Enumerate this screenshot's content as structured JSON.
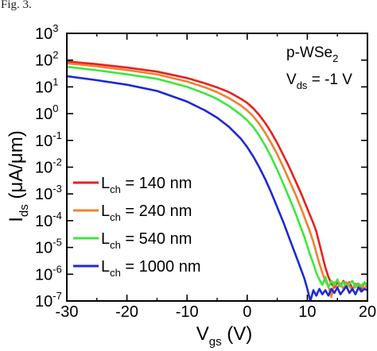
{
  "caption": "Fig. 3.",
  "chart_data": {
    "type": "line",
    "xlabel": "V",
    "xlabel_sub": "gs",
    "xlabel_unit": "(V)",
    "ylabel": "I",
    "ylabel_sub": "ds",
    "ylabel_unit": "(μA/μm)",
    "xlim": [
      -30,
      20
    ],
    "ylim_log10": [
      -7,
      3
    ],
    "y_scale": "log",
    "grid": false,
    "x_ticks": [
      -30,
      -20,
      -10,
      0,
      10,
      20
    ],
    "x_tick_labels": [
      "-30",
      "-20",
      "-10",
      "0",
      "10",
      "20"
    ],
    "y_ticks_log10": [
      3,
      2,
      1,
      0,
      -1,
      -2,
      -3,
      -4,
      -5,
      -6,
      -7
    ],
    "y_tick_labels": [
      {
        "base": "10",
        "exp": "3"
      },
      {
        "base": "10",
        "exp": "2"
      },
      {
        "base": "10",
        "exp": "1"
      },
      {
        "base": "10",
        "exp": "0"
      },
      {
        "base": "10",
        "exp": "-1"
      },
      {
        "base": "10",
        "exp": "-2"
      },
      {
        "base": "10",
        "exp": "-3"
      },
      {
        "base": "10",
        "exp": "-4"
      },
      {
        "base": "10",
        "exp": "-5"
      },
      {
        "base": "10",
        "exp": "-6"
      },
      {
        "base": "10",
        "exp": "-7"
      }
    ],
    "annotations": {
      "material": {
        "main": "p-WSe",
        "sub": "2"
      },
      "bias": {
        "main": "V",
        "sub": "ds",
        "rest": " = -1 V"
      }
    },
    "legend_position": "lower-left",
    "series": [
      {
        "name": "140 nm",
        "label_main": "L",
        "label_sub": "ch",
        "label_rest": " = 140 nm",
        "color": "#e8201e",
        "x": [
          -30,
          -25,
          -20,
          -15,
          -10,
          -7,
          -5,
          -3,
          -1,
          0,
          1,
          2,
          3,
          4,
          5,
          6,
          7,
          8,
          9,
          10,
          11,
          11.5,
          12,
          12.5,
          13,
          13.5,
          14,
          14.5,
          15,
          15.5,
          16,
          16.5,
          17,
          17.5,
          18,
          18.5,
          19,
          19.5,
          20
        ],
        "y_log10": [
          1.95,
          1.85,
          1.72,
          1.57,
          1.33,
          1.13,
          0.98,
          0.8,
          0.55,
          0.4,
          0.2,
          -0.05,
          -0.35,
          -0.7,
          -1.1,
          -1.55,
          -2.0,
          -2.5,
          -3.0,
          -3.55,
          -4.1,
          -4.4,
          -4.85,
          -5.3,
          -5.75,
          -6.1,
          -6.35,
          -6.5,
          -6.3,
          -6.45,
          -6.25,
          -6.5,
          -6.3,
          -6.55,
          -6.4,
          -6.35,
          -6.55,
          -6.3,
          -6.45
        ]
      },
      {
        "name": "240 nm",
        "label_main": "L",
        "label_sub": "ch",
        "label_rest": " = 240 nm",
        "color": "#f08030",
        "x": [
          -30,
          -25,
          -20,
          -15,
          -10,
          -7,
          -5,
          -3,
          -1,
          0,
          1,
          2,
          3,
          4,
          5,
          6,
          7,
          8,
          9,
          10,
          10.5,
          11,
          11.5,
          12,
          12.5,
          13,
          13.5,
          14,
          14.5,
          15,
          15.5,
          16,
          16.5,
          17,
          17.5,
          18,
          18.5,
          19,
          19.5,
          20
        ],
        "y_log10": [
          1.88,
          1.77,
          1.63,
          1.47,
          1.2,
          0.98,
          0.8,
          0.58,
          0.3,
          0.12,
          -0.1,
          -0.38,
          -0.72,
          -1.1,
          -1.52,
          -2.0,
          -2.5,
          -3.0,
          -3.55,
          -4.15,
          -4.45,
          -4.8,
          -5.2,
          -5.6,
          -5.95,
          -6.25,
          -6.45,
          -6.85,
          -6.3,
          -6.5,
          -6.35,
          -6.55,
          -6.3,
          -6.45,
          -6.6,
          -6.35,
          -6.5,
          -6.4,
          -6.55,
          -6.35
        ]
      },
      {
        "name": "540 nm",
        "label_main": "L",
        "label_sub": "ch",
        "label_rest": " = 540 nm",
        "color": "#3ee63e",
        "x": [
          -30,
          -25,
          -20,
          -15,
          -10,
          -7,
          -5,
          -3,
          -1,
          0,
          1,
          2,
          3,
          4,
          5,
          6,
          7,
          8,
          9,
          9.5,
          10,
          10.5,
          11,
          11.5,
          12,
          12.5,
          13,
          13.5,
          14,
          14.5,
          15,
          15.5,
          16,
          16.5,
          17,
          17.5,
          18,
          18.5,
          19,
          19.5,
          20
        ],
        "y_log10": [
          1.75,
          1.62,
          1.47,
          1.3,
          1.0,
          0.75,
          0.55,
          0.28,
          -0.05,
          -0.25,
          -0.5,
          -0.82,
          -1.2,
          -1.62,
          -2.1,
          -2.62,
          -3.15,
          -3.7,
          -4.3,
          -4.6,
          -4.95,
          -5.3,
          -5.6,
          -5.95,
          -6.2,
          -6.4,
          -6.1,
          -6.5,
          -6.25,
          -6.4,
          -6.2,
          -6.45,
          -6.3,
          -6.5,
          -6.35,
          -6.25,
          -6.5,
          -6.35,
          -6.45,
          -6.3,
          -6.4
        ]
      },
      {
        "name": "1000 nm",
        "label_main": "L",
        "label_sub": "ch",
        "label_rest": " = 1000 nm",
        "color": "#1f28d8",
        "x": [
          -30,
          -25,
          -20,
          -15,
          -10,
          -7,
          -5,
          -3,
          -1,
          0,
          1,
          2,
          3,
          4,
          5,
          6,
          7,
          8,
          8.5,
          9,
          9.5,
          10,
          10.5,
          11,
          11.5,
          12,
          12.5,
          13,
          13.5,
          14,
          14.5,
          15,
          15.5,
          16,
          16.5,
          17,
          17.5,
          18,
          18.5,
          19,
          19.5,
          20
        ],
        "y_log10": [
          1.4,
          1.25,
          1.08,
          0.85,
          0.45,
          0.12,
          -0.15,
          -0.5,
          -0.95,
          -1.25,
          -1.6,
          -2.0,
          -2.45,
          -2.95,
          -3.5,
          -4.05,
          -4.65,
          -5.25,
          -5.55,
          -5.85,
          -6.15,
          -6.55,
          -7.0,
          -6.6,
          -6.8,
          -6.55,
          -6.75,
          -6.6,
          -6.8,
          -6.55,
          -6.7,
          -6.5,
          -6.75,
          -6.6,
          -6.45,
          -6.7,
          -6.55,
          -6.75,
          -6.5,
          -6.65,
          -6.55,
          -6.6
        ]
      }
    ]
  }
}
